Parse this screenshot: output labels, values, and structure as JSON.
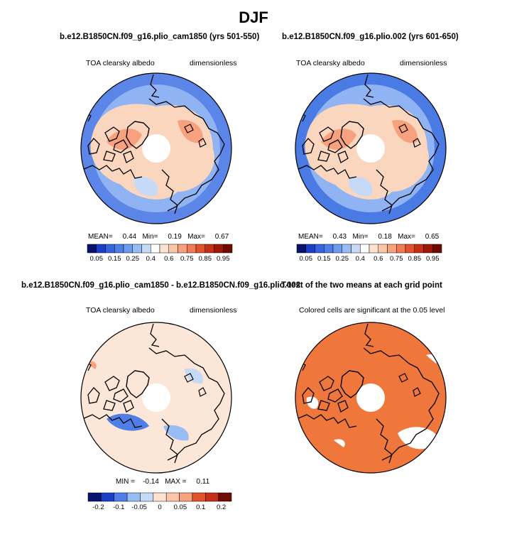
{
  "figure": {
    "title": "DJF"
  },
  "panels": [
    {
      "title": "b.e12.B1850CN.f09_g16.plio_cam1850 (yrs 501-550)",
      "left_label": "TOA clearsky albedo",
      "right_label": "dimensionless",
      "stats": {
        "mean_label": "MEAN=",
        "mean": "0.44",
        "min_label": "Min=",
        "min": "0.19",
        "max_label": "Max=",
        "max": "0.67"
      }
    },
    {
      "title": "b.e12.B1850CN.f09_g16.plio.002 (yrs 601-650)",
      "left_label": "TOA clearsky albedo",
      "right_label": "dimensionless",
      "stats": {
        "mean_label": "MEAN=",
        "mean": "0.43",
        "min_label": "Min=",
        "min": "0.18",
        "max_label": "Max=",
        "max": "0.65"
      }
    },
    {
      "title": "b.e12.B1850CN.f09_g16.plio_cam1850 - b.e12.B1850CN.f09_g16.plio.002",
      "left_label": "TOA clearsky albedo",
      "right_label": "dimensionless",
      "stats": {
        "min_label": "MIN =",
        "min": "-0.14",
        "max_label": "MAX =",
        "max": "0.11"
      }
    },
    {
      "title": "T-test of the two means at each grid point",
      "left_label": "Colored cells are significant at the 0.05 level"
    }
  ],
  "chart_data": [
    {
      "type": "heatmap",
      "projection": "north-polar-stereographic",
      "title": "b.e12.B1850CN.f09_g16.plio_cam1850 (yrs 501-550)",
      "variable": "TOA clearsky albedo",
      "units": "dimensionless",
      "mean": 0.44,
      "min": 0.19,
      "max": 0.67,
      "colorbar_levels": [
        0.05,
        0.1,
        0.15,
        0.2,
        0.25,
        0.3,
        0.4,
        0.5,
        0.6,
        0.7,
        0.75,
        0.8,
        0.85,
        0.9,
        0.95
      ],
      "colorbar_tick_labels": [
        "0.05",
        "0.15",
        "0.25",
        "0.4",
        "0.6",
        "0.75",
        "0.85",
        "0.95"
      ]
    },
    {
      "type": "heatmap",
      "projection": "north-polar-stereographic",
      "title": "b.e12.B1850CN.f09_g16.plio.002 (yrs 601-650)",
      "variable": "TOA clearsky albedo",
      "units": "dimensionless",
      "mean": 0.43,
      "min": 0.18,
      "max": 0.65,
      "colorbar_levels": [
        0.05,
        0.1,
        0.15,
        0.2,
        0.25,
        0.3,
        0.4,
        0.5,
        0.6,
        0.7,
        0.75,
        0.8,
        0.85,
        0.9,
        0.95
      ],
      "colorbar_tick_labels": [
        "0.05",
        "0.15",
        "0.25",
        "0.4",
        "0.6",
        "0.75",
        "0.85",
        "0.95"
      ]
    },
    {
      "type": "heatmap",
      "projection": "north-polar-stereographic",
      "title": "b.e12.B1850CN.f09_g16.plio_cam1850 - b.e12.B1850CN.f09_g16.plio.002",
      "variable": "TOA clearsky albedo",
      "units": "dimensionless",
      "min": -0.14,
      "max": 0.11,
      "colorbar_tick_labels": [
        "-0.2",
        "-0.1",
        "-0.05",
        "0",
        "0.05",
        "0.1",
        "0.2"
      ]
    },
    {
      "type": "heatmap",
      "projection": "north-polar-stereographic",
      "title": "T-test of the two means at each grid point",
      "note": "Colored cells are significant at the 0.05 level",
      "significance_level": 0.05
    }
  ],
  "colors": {
    "abs_scale": [
      "#08136e",
      "#1c3ec7",
      "#3562dd",
      "#4f7ee6",
      "#6f9bee",
      "#98bcf4",
      "#c6daf8",
      "#ffffff",
      "#fde2d1",
      "#fbc5a8",
      "#f7a17f",
      "#f07b56",
      "#e0532e",
      "#c52f15",
      "#9e1707",
      "#6f0a03"
    ],
    "diff_scale": [
      "#08136e",
      "#1c3ec7",
      "#4f7ee6",
      "#98bcf4",
      "#c6daf8",
      "#fde2d1",
      "#fbc5a8",
      "#f7a17f",
      "#e0532e",
      "#c52f15",
      "#6f0a03"
    ],
    "ocean_blue": "#4f7ee6",
    "land_pink": "#fbd6bf",
    "significance": "#f0773c"
  }
}
